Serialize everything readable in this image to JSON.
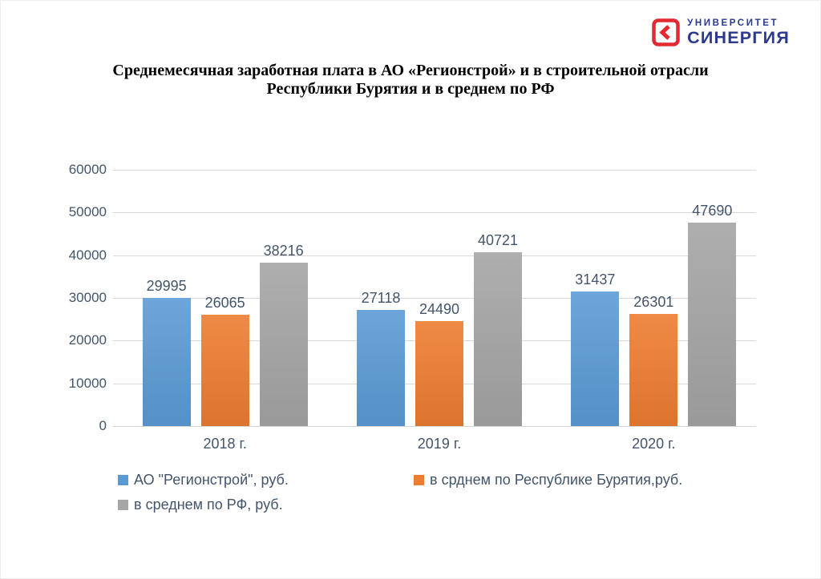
{
  "logo": {
    "line1": "УНИВЕРСИТЕТ",
    "line2": "СИНЕРГИЯ",
    "brand_color": "#2b3990",
    "accent_color": "#e32a32"
  },
  "title": {
    "line1": "Среднемесячная заработная плата в АО «Регионстрой» и в строительной отрасли",
    "line2": "Республики Бурятия и в среднем по РФ"
  },
  "chart_data": {
    "type": "bar",
    "categories": [
      "2018 г.",
      "2019 г.",
      "2020 г."
    ],
    "series": [
      {
        "name": "АО \"Регионстрой\", руб.",
        "color": "#5b9bd5",
        "values": [
          29995,
          27118,
          31437
        ]
      },
      {
        "name": "в срднем по Республике Бурятия,руб.",
        "color": "#ed7d31",
        "values": [
          26065,
          24490,
          26301
        ]
      },
      {
        "name": "в среднем по РФ, руб.",
        "color": "#a5a5a5",
        "values": [
          38216,
          40721,
          47690
        ]
      }
    ],
    "ylim": [
      0,
      60000
    ],
    "yticks": [
      0,
      10000,
      20000,
      30000,
      40000,
      50000,
      60000
    ],
    "grid": true,
    "gridline_color": "#d9d9d9",
    "axis_line_color": "#d6d6d6",
    "axis_text_color": "#44546a",
    "legend_position": "bottom-left"
  }
}
